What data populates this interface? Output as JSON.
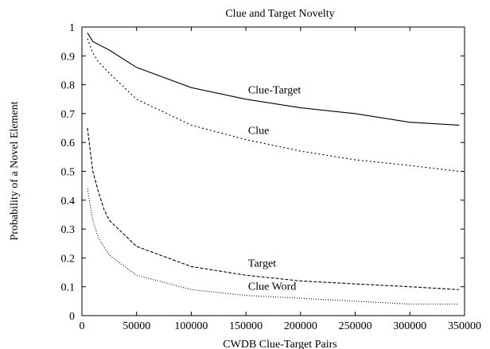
{
  "chart_data": {
    "type": "line",
    "title": "Clue and Target Novelty",
    "xlabel": "CWDB Clue-Target Pairs",
    "ylabel": "Probability of a Novel Element",
    "xlim": [
      0,
      350000
    ],
    "ylim": [
      0,
      1
    ],
    "xticks": [
      0,
      50000,
      100000,
      150000,
      200000,
      250000,
      300000,
      350000
    ],
    "xtick_labels": [
      "0",
      "50000",
      "100000",
      "150000",
      "200000",
      "250000",
      "300000",
      "350000"
    ],
    "yticks": [
      0,
      0.1,
      0.2,
      0.3,
      0.4,
      0.5,
      0.6,
      0.7,
      0.8,
      0.9,
      1
    ],
    "ytick_labels": [
      "0",
      "0.1",
      "0.2",
      "0.3",
      "0.4",
      "0.5",
      "0.6",
      "0.7",
      "0.8",
      "0.9",
      "1"
    ],
    "grid": false,
    "legend": "inline labels",
    "series": [
      {
        "name": "Clue-Target",
        "style": "solid",
        "x": [
          5000,
          10000,
          15000,
          20000,
          25000,
          50000,
          100000,
          150000,
          200000,
          250000,
          300000,
          345000
        ],
        "y": [
          0.98,
          0.95,
          0.94,
          0.93,
          0.92,
          0.86,
          0.79,
          0.75,
          0.72,
          0.7,
          0.67,
          0.66
        ]
      },
      {
        "name": "Clue",
        "style": "dotted",
        "x": [
          5000,
          10000,
          15000,
          20000,
          25000,
          50000,
          100000,
          150000,
          200000,
          250000,
          300000,
          345000
        ],
        "y": [
          0.96,
          0.91,
          0.88,
          0.86,
          0.84,
          0.75,
          0.66,
          0.61,
          0.57,
          0.54,
          0.52,
          0.5
        ]
      },
      {
        "name": "Target",
        "style": "dashed",
        "x": [
          5000,
          10000,
          15000,
          20000,
          25000,
          50000,
          100000,
          150000,
          200000,
          250000,
          300000,
          345000
        ],
        "y": [
          0.65,
          0.5,
          0.43,
          0.37,
          0.33,
          0.24,
          0.17,
          0.14,
          0.12,
          0.11,
          0.1,
          0.09
        ]
      },
      {
        "name": "Clue Word",
        "style": "dotted-fine",
        "x": [
          5000,
          10000,
          15000,
          20000,
          25000,
          50000,
          100000,
          150000,
          200000,
          250000,
          300000,
          345000
        ],
        "y": [
          0.44,
          0.33,
          0.27,
          0.24,
          0.21,
          0.14,
          0.09,
          0.07,
          0.06,
          0.05,
          0.04,
          0.04
        ]
      }
    ],
    "annotations": [
      {
        "text": "Clue-Target",
        "x": 152000,
        "y": 0.77
      },
      {
        "text": "Clue",
        "x": 152000,
        "y": 0.63
      },
      {
        "text": "Target",
        "x": 152000,
        "y": 0.17
      },
      {
        "text": "Clue Word",
        "x": 152000,
        "y": 0.09
      }
    ]
  }
}
